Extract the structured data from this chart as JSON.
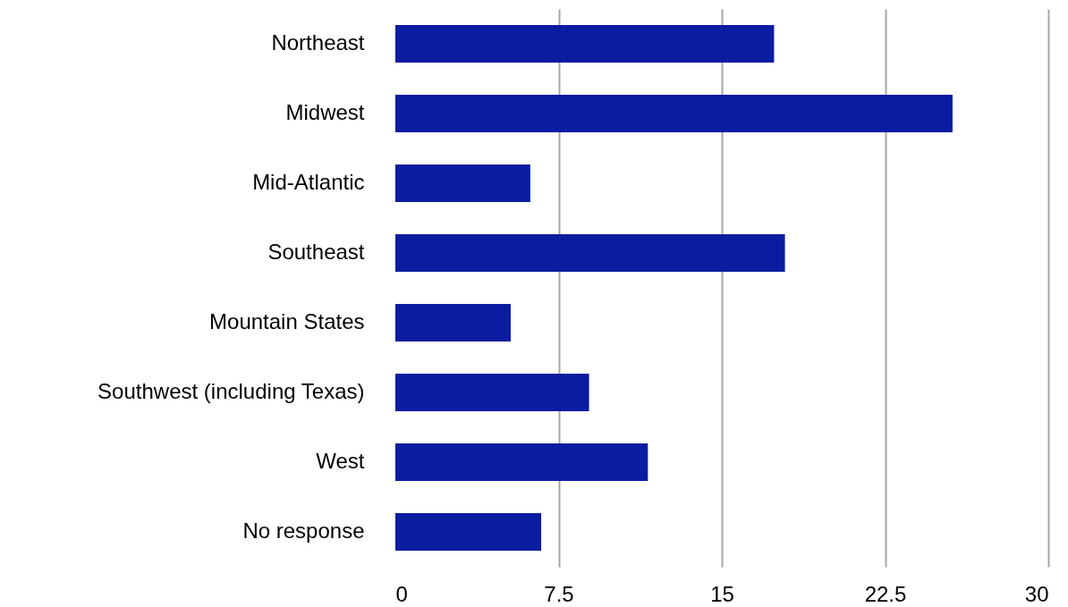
{
  "chart_data": {
    "type": "bar",
    "orientation": "horizontal",
    "categories": [
      "Northeast",
      "Midwest",
      "Mid-Atlantic",
      "Southeast",
      "Mountain States",
      "Southwest (including Texas)",
      "West",
      "No response"
    ],
    "values": [
      17.4,
      25.6,
      6.2,
      17.9,
      5.3,
      8.9,
      11.6,
      6.7
    ],
    "color": "#0a1ca0",
    "xlim": [
      0,
      30
    ],
    "xticks": [
      0,
      7.5,
      15,
      22.5,
      30
    ],
    "grid": "x"
  }
}
